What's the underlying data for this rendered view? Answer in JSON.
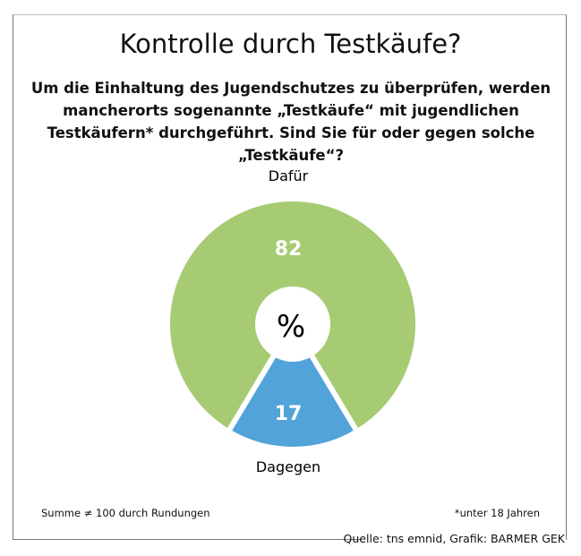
{
  "title": "Kontrolle durch Testkäufe?",
  "subtitle": "Um die Einhaltung des Jugendschutzes zu überprüfen, werden mancherorts sogenannte „Testkäufe“ mit jugendlichen Testkäufern* durchgeführt. Sind Sie für oder gegen solche „Testkäufe“?",
  "chart_data": {
    "type": "pie",
    "title": "Kontrolle durch Testkäufe?",
    "unit_label": "%",
    "categories": [
      "Dafür",
      "Dagegen"
    ],
    "values": [
      82,
      17
    ],
    "colors": [
      "#a6cb73",
      "#52a3d9"
    ]
  },
  "footnote_left": "Summe ≠ 100 durch Rundungen",
  "footnote_right": "*unter 18 Jahren",
  "source": "Quelle: tns emnid, Grafik: BARMER GEK"
}
